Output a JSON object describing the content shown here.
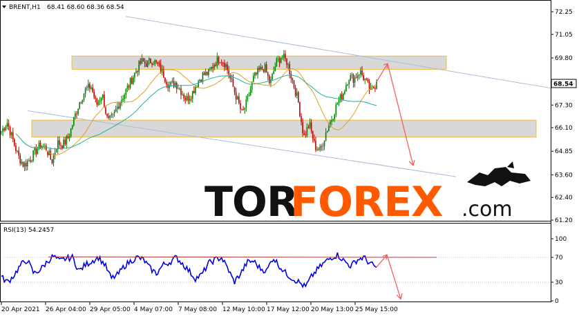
{
  "header": {
    "symbol": "BRENT,H1",
    "ohlc": "68.41 68.60 68.36 68.54"
  },
  "price_panel": {
    "y_ticks": [
      "72.25",
      "71.05",
      "69.80",
      "68.54",
      "67.30",
      "66.10",
      "64.85",
      "63.60",
      "62.40",
      "61.20"
    ],
    "current_price": "68.54",
    "colors": {
      "bull": "#008000",
      "bear": "#c00000",
      "ma_fast": "#e0a020",
      "ma_slow": "#20b0a0",
      "channel": "#a8bcd8",
      "zone_fill": "#d8d8d8",
      "zone_border": "#f0b840",
      "arrow": "#f06060"
    }
  },
  "rsi_panel": {
    "title": "RSI(13) 54.2457",
    "y_ticks": [
      "100",
      "70",
      "30",
      "0"
    ],
    "line_color": "#0000e0"
  },
  "x_axis": {
    "labels": [
      "20 Apr 2021",
      "26 Apr 04:00",
      "29 Apr 05:00",
      "4 May 07:00",
      "7 May 08:00",
      "12 May 10:00",
      "17 May 12:00",
      "20 May 13:00",
      "25 May 15:00"
    ]
  },
  "watermark": {
    "text_dark": "TOR",
    "text_orange": "FOREX",
    "text_suffix": ".com"
  },
  "chart_data": {
    "type": "line",
    "title": "BRENT,H1",
    "xlabel": "",
    "ylabel": "",
    "ylim": [
      61.2,
      72.25
    ],
    "close_path": [
      65.9,
      66.4,
      65.5,
      64.6,
      64.1,
      64.4,
      64.8,
      65.2,
      65.0,
      64.3,
      65.3,
      65.2,
      65.6,
      66.6,
      67.5,
      68.1,
      68.3,
      67.3,
      67.9,
      66.4,
      66.7,
      67.4,
      67.9,
      68.5,
      69.1,
      69.6,
      69.5,
      69.7,
      69.4,
      68.9,
      68.3,
      68.5,
      68.1,
      67.6,
      67.9,
      68.5,
      68.9,
      69.0,
      69.5,
      69.8,
      69.5,
      68.6,
      67.7,
      66.8,
      67.6,
      68.7,
      69.1,
      69.3,
      68.4,
      69.5,
      69.9,
      69.6,
      68.6,
      67.5,
      65.6,
      66.3,
      65.1,
      64.9,
      65.9,
      66.6,
      67.4,
      67.9,
      68.8,
      68.7,
      69.1,
      68.6,
      68.0,
      68.5
    ],
    "rsi_path": [
      38,
      30,
      42,
      58,
      66,
      44,
      50,
      62,
      72,
      64,
      68,
      70,
      48,
      58,
      64,
      70,
      58,
      36,
      42,
      56,
      64,
      70,
      66,
      52,
      44,
      58,
      62,
      70,
      60,
      48,
      36,
      42,
      60,
      66,
      70,
      52,
      30,
      44,
      62,
      64,
      52,
      48,
      70,
      56,
      44,
      36,
      30,
      22,
      40,
      52,
      62,
      70,
      74,
      64,
      56,
      66,
      70,
      60,
      54
    ],
    "channel_upper": {
      "start": 72.0,
      "end": 68.2
    },
    "channel_lower": {
      "start": 67.0,
      "end": 63.5
    },
    "resistance_zone": [
      69.2,
      69.9
    ],
    "support_zone": [
      65.6,
      66.5
    ],
    "forecast": {
      "up_target": 69.5,
      "down_target": 64.1
    },
    "rsi_resistance": [
      72,
      70
    ]
  }
}
